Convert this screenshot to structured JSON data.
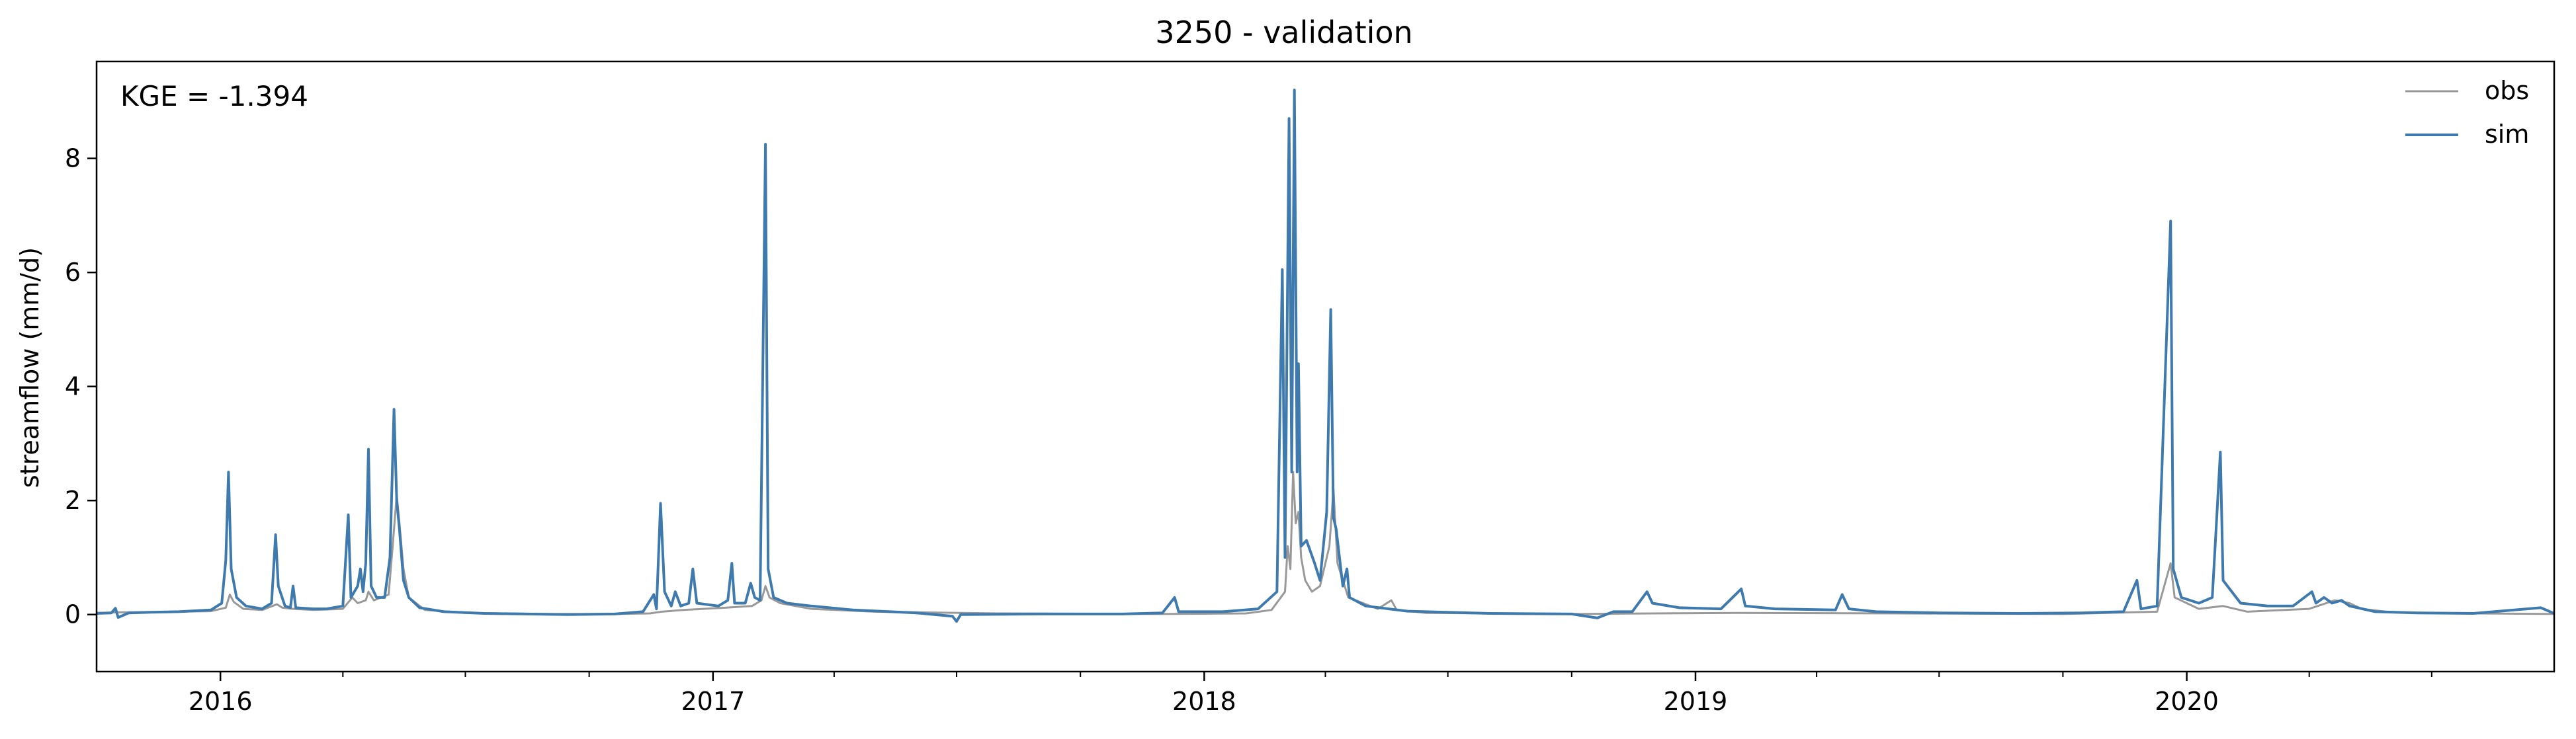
{
  "chart_data": {
    "type": "line",
    "title": "3250 - validation",
    "xlabel": "",
    "ylabel": "streamflow (mm/d)",
    "annotation": "KGE = -1.394",
    "xlim": [
      "2015-10-01",
      "2020-09-30"
    ],
    "ylim": [
      -1.0,
      9.7
    ],
    "yticks": [
      0,
      2,
      4,
      6,
      8
    ],
    "xticks": [
      {
        "date": "2016-01-01",
        "label": "2016"
      },
      {
        "date": "2017-01-01",
        "label": "2017"
      },
      {
        "date": "2018-01-01",
        "label": "2018"
      },
      {
        "date": "2019-01-01",
        "label": "2019"
      },
      {
        "date": "2020-01-01",
        "label": "2020"
      }
    ],
    "minor_xticks": [
      "2016-04-01",
      "2016-07-01",
      "2016-10-01",
      "2017-04-01",
      "2017-07-01",
      "2017-10-01",
      "2018-04-01",
      "2018-07-01",
      "2018-10-01",
      "2019-04-01",
      "2019-07-01",
      "2019-10-01",
      "2020-04-01",
      "2020-07-01"
    ],
    "grid": false,
    "legend_position": "top-right",
    "series": [
      {
        "name": "obs",
        "color": "#999999",
        "points": [
          [
            "2015-10-01",
            0.03
          ],
          [
            "2015-10-20",
            0.04
          ],
          [
            "2015-11-10",
            0.04
          ],
          [
            "2015-12-01",
            0.05
          ],
          [
            "2015-12-25",
            0.06
          ],
          [
            "2016-01-05",
            0.12
          ],
          [
            "2016-01-08",
            0.35
          ],
          [
            "2016-01-11",
            0.22
          ],
          [
            "2016-01-18",
            0.1
          ],
          [
            "2016-02-01",
            0.08
          ],
          [
            "2016-02-12",
            0.18
          ],
          [
            "2016-02-16",
            0.12
          ],
          [
            "2016-02-24",
            0.1
          ],
          [
            "2016-03-10",
            0.08
          ],
          [
            "2016-04-01",
            0.1
          ],
          [
            "2016-04-08",
            0.3
          ],
          [
            "2016-04-12",
            0.2
          ],
          [
            "2016-04-18",
            0.25
          ],
          [
            "2016-04-20",
            0.4
          ],
          [
            "2016-04-24",
            0.25
          ],
          [
            "2016-05-05",
            0.35
          ],
          [
            "2016-05-08",
            1.2
          ],
          [
            "2016-05-11",
            2.1
          ],
          [
            "2016-05-13",
            1.6
          ],
          [
            "2016-05-16",
            0.8
          ],
          [
            "2016-05-20",
            0.3
          ],
          [
            "2016-06-01",
            0.08
          ],
          [
            "2016-07-01",
            0.03
          ],
          [
            "2016-09-01",
            0.01
          ],
          [
            "2016-10-20",
            0.01
          ],
          [
            "2016-11-15",
            0.02
          ],
          [
            "2016-11-24",
            0.05
          ],
          [
            "2016-12-10",
            0.08
          ],
          [
            "2017-01-10",
            0.12
          ],
          [
            "2017-01-30",
            0.15
          ],
          [
            "2017-02-06",
            0.25
          ],
          [
            "2017-02-09",
            0.5
          ],
          [
            "2017-02-12",
            0.3
          ],
          [
            "2017-02-20",
            0.2
          ],
          [
            "2017-03-15",
            0.1
          ],
          [
            "2017-05-01",
            0.05
          ],
          [
            "2017-08-01",
            0.02
          ],
          [
            "2017-12-01",
            0.01
          ],
          [
            "2018-02-01",
            0.02
          ],
          [
            "2018-02-20",
            0.08
          ],
          [
            "2018-03-02",
            0.4
          ],
          [
            "2018-03-04",
            1.2
          ],
          [
            "2018-03-06",
            0.8
          ],
          [
            "2018-03-08",
            2.5
          ],
          [
            "2018-03-10",
            1.6
          ],
          [
            "2018-03-12",
            1.8
          ],
          [
            "2018-03-14",
            1.0
          ],
          [
            "2018-03-17",
            0.6
          ],
          [
            "2018-03-22",
            0.4
          ],
          [
            "2018-03-28",
            0.5
          ],
          [
            "2018-04-04",
            1.2
          ],
          [
            "2018-04-07",
            2.2
          ],
          [
            "2018-04-10",
            0.9
          ],
          [
            "2018-04-18",
            0.3
          ],
          [
            "2018-05-10",
            0.1
          ],
          [
            "2018-05-20",
            0.25
          ],
          [
            "2018-05-24",
            0.08
          ],
          [
            "2018-06-15",
            0.03
          ],
          [
            "2018-10-01",
            0.01
          ],
          [
            "2018-12-01",
            0.02
          ],
          [
            "2019-02-01",
            0.03
          ],
          [
            "2019-06-01",
            0.02
          ],
          [
            "2019-10-01",
            0.01
          ],
          [
            "2019-12-10",
            0.05
          ],
          [
            "2019-12-20",
            0.9
          ],
          [
            "2019-12-23",
            0.3
          ],
          [
            "2020-01-10",
            0.1
          ],
          [
            "2020-01-28",
            0.15
          ],
          [
            "2020-02-15",
            0.05
          ],
          [
            "2020-04-01",
            0.1
          ],
          [
            "2020-04-20",
            0.25
          ],
          [
            "2020-05-01",
            0.2
          ],
          [
            "2020-05-10",
            0.1
          ],
          [
            "2020-06-01",
            0.04
          ],
          [
            "2020-08-01",
            0.02
          ],
          [
            "2020-09-30",
            0.01
          ]
        ]
      },
      {
        "name": "sim",
        "color": "#3f7aae",
        "points": [
          [
            "2015-10-01",
            0.02
          ],
          [
            "2015-10-12",
            0.03
          ],
          [
            "2015-10-15",
            0.11
          ],
          [
            "2015-10-17",
            -0.05
          ],
          [
            "2015-10-25",
            0.03
          ],
          [
            "2015-11-10",
            0.04
          ],
          [
            "2015-12-01",
            0.05
          ],
          [
            "2015-12-25",
            0.08
          ],
          [
            "2016-01-02",
            0.2
          ],
          [
            "2016-01-05",
            0.95
          ],
          [
            "2016-01-07",
            2.5
          ],
          [
            "2016-01-09",
            0.8
          ],
          [
            "2016-01-13",
            0.3
          ],
          [
            "2016-01-20",
            0.15
          ],
          [
            "2016-02-01",
            0.1
          ],
          [
            "2016-02-08",
            0.2
          ],
          [
            "2016-02-11",
            1.4
          ],
          [
            "2016-02-13",
            0.5
          ],
          [
            "2016-02-18",
            0.15
          ],
          [
            "2016-02-22",
            0.12
          ],
          [
            "2016-02-24",
            0.5
          ],
          [
            "2016-02-26",
            0.12
          ],
          [
            "2016-03-10",
            0.1
          ],
          [
            "2016-03-20",
            0.1
          ],
          [
            "2016-04-01",
            0.15
          ],
          [
            "2016-04-05",
            1.75
          ],
          [
            "2016-04-07",
            0.3
          ],
          [
            "2016-04-12",
            0.5
          ],
          [
            "2016-04-14",
            0.8
          ],
          [
            "2016-04-16",
            0.4
          ],
          [
            "2016-04-18",
            0.9
          ],
          [
            "2016-04-20",
            2.9
          ],
          [
            "2016-04-22",
            0.5
          ],
          [
            "2016-04-26",
            0.3
          ],
          [
            "2016-05-02",
            0.3
          ],
          [
            "2016-05-06",
            1.0
          ],
          [
            "2016-05-09",
            3.6
          ],
          [
            "2016-05-11",
            2.0
          ],
          [
            "2016-05-13",
            1.5
          ],
          [
            "2016-05-16",
            0.6
          ],
          [
            "2016-05-20",
            0.3
          ],
          [
            "2016-05-28",
            0.12
          ],
          [
            "2016-06-15",
            0.05
          ],
          [
            "2016-07-15",
            0.02
          ],
          [
            "2016-08-15",
            0.01
          ],
          [
            "2016-09-15",
            0.0
          ],
          [
            "2016-10-20",
            0.01
          ],
          [
            "2016-11-10",
            0.05
          ],
          [
            "2016-11-18",
            0.35
          ],
          [
            "2016-11-20",
            0.1
          ],
          [
            "2016-11-23",
            1.95
          ],
          [
            "2016-11-26",
            0.4
          ],
          [
            "2016-12-01",
            0.15
          ],
          [
            "2016-12-04",
            0.4
          ],
          [
            "2016-12-08",
            0.15
          ],
          [
            "2016-12-14",
            0.2
          ],
          [
            "2016-12-17",
            0.8
          ],
          [
            "2016-12-20",
            0.2
          ],
          [
            "2017-01-05",
            0.15
          ],
          [
            "2017-01-12",
            0.25
          ],
          [
            "2017-01-15",
            0.9
          ],
          [
            "2017-01-17",
            0.2
          ],
          [
            "2017-01-25",
            0.2
          ],
          [
            "2017-01-29",
            0.55
          ],
          [
            "2017-02-01",
            0.3
          ],
          [
            "2017-02-05",
            0.25
          ],
          [
            "2017-02-09",
            8.25
          ],
          [
            "2017-02-11",
            0.8
          ],
          [
            "2017-02-15",
            0.3
          ],
          [
            "2017-02-25",
            0.2
          ],
          [
            "2017-03-15",
            0.15
          ],
          [
            "2017-04-15",
            0.08
          ],
          [
            "2017-06-01",
            0.03
          ],
          [
            "2017-06-28",
            -0.03
          ],
          [
            "2017-07-01",
            -0.12
          ],
          [
            "2017-07-04",
            0.0
          ],
          [
            "2017-09-01",
            0.01
          ],
          [
            "2017-11-01",
            0.01
          ],
          [
            "2017-12-01",
            0.03
          ],
          [
            "2017-12-10",
            0.3
          ],
          [
            "2017-12-13",
            0.05
          ],
          [
            "2018-01-15",
            0.05
          ],
          [
            "2018-02-10",
            0.1
          ],
          [
            "2018-02-24",
            0.4
          ],
          [
            "2018-02-28",
            6.05
          ],
          [
            "2018-03-02",
            1.0
          ],
          [
            "2018-03-05",
            8.7
          ],
          [
            "2018-03-07",
            2.5
          ],
          [
            "2018-03-09",
            9.2
          ],
          [
            "2018-03-11",
            2.5
          ],
          [
            "2018-03-12",
            4.4
          ],
          [
            "2018-03-14",
            1.2
          ],
          [
            "2018-03-18",
            1.3
          ],
          [
            "2018-03-24",
            0.9
          ],
          [
            "2018-03-28",
            0.6
          ],
          [
            "2018-04-02",
            1.8
          ],
          [
            "2018-04-05",
            5.35
          ],
          [
            "2018-04-07",
            1.7
          ],
          [
            "2018-04-09",
            1.5
          ],
          [
            "2018-04-14",
            0.5
          ],
          [
            "2018-04-17",
            0.8
          ],
          [
            "2018-04-19",
            0.3
          ],
          [
            "2018-05-01",
            0.15
          ],
          [
            "2018-06-01",
            0.06
          ],
          [
            "2018-08-01",
            0.02
          ],
          [
            "2018-10-01",
            0.01
          ],
          [
            "2018-10-20",
            -0.06
          ],
          [
            "2018-11-01",
            0.05
          ],
          [
            "2018-11-15",
            0.05
          ],
          [
            "2018-11-26",
            0.4
          ],
          [
            "2018-11-30",
            0.2
          ],
          [
            "2018-12-20",
            0.12
          ],
          [
            "2019-01-20",
            0.1
          ],
          [
            "2019-02-04",
            0.45
          ],
          [
            "2019-02-07",
            0.15
          ],
          [
            "2019-03-01",
            0.1
          ],
          [
            "2019-04-15",
            0.08
          ],
          [
            "2019-04-20",
            0.35
          ],
          [
            "2019-04-25",
            0.1
          ],
          [
            "2019-05-15",
            0.05
          ],
          [
            "2019-07-01",
            0.03
          ],
          [
            "2019-09-01",
            0.02
          ],
          [
            "2019-10-15",
            0.03
          ],
          [
            "2019-11-15",
            0.05
          ],
          [
            "2019-11-25",
            0.6
          ],
          [
            "2019-11-28",
            0.1
          ],
          [
            "2019-12-10",
            0.15
          ],
          [
            "2019-12-20",
            6.9
          ],
          [
            "2019-12-22",
            0.8
          ],
          [
            "2019-12-28",
            0.3
          ],
          [
            "2020-01-10",
            0.2
          ],
          [
            "2020-01-20",
            0.3
          ],
          [
            "2020-01-26",
            2.85
          ],
          [
            "2020-01-28",
            0.6
          ],
          [
            "2020-02-10",
            0.2
          ],
          [
            "2020-03-01",
            0.15
          ],
          [
            "2020-03-20",
            0.15
          ],
          [
            "2020-04-03",
            0.4
          ],
          [
            "2020-04-06",
            0.2
          ],
          [
            "2020-04-12",
            0.3
          ],
          [
            "2020-04-18",
            0.2
          ],
          [
            "2020-04-25",
            0.25
          ],
          [
            "2020-05-01",
            0.15
          ],
          [
            "2020-05-20",
            0.05
          ],
          [
            "2020-06-20",
            0.03
          ],
          [
            "2020-08-01",
            0.02
          ],
          [
            "2020-09-20",
            0.12
          ],
          [
            "2020-09-30",
            0.02
          ]
        ]
      }
    ]
  }
}
